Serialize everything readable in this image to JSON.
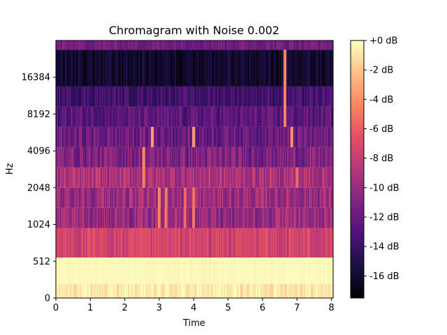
{
  "chart_data": {
    "type": "heatmap",
    "title": "Chromagram with Noise 0.002",
    "xlabel": "Time",
    "ylabel": "Hz",
    "xlim": [
      0,
      8.05
    ],
    "x_ticks": [
      {
        "value": 0,
        "label": "0"
      },
      {
        "value": 1,
        "label": "1"
      },
      {
        "value": 2,
        "label": "2"
      },
      {
        "value": 3,
        "label": "3"
      },
      {
        "value": 4,
        "label": "4"
      },
      {
        "value": 5,
        "label": "5"
      },
      {
        "value": 6,
        "label": "6"
      },
      {
        "value": 7,
        "label": "7"
      },
      {
        "value": 8,
        "label": "8"
      }
    ],
    "y_ticks": [
      {
        "label": "0",
        "octave": 0
      },
      {
        "label": "512",
        "octave": 1
      },
      {
        "label": "1024",
        "octave": 2
      },
      {
        "label": "2048",
        "octave": 3
      },
      {
        "label": "4096",
        "octave": 4
      },
      {
        "label": "8192",
        "octave": 5
      },
      {
        "label": "16384",
        "octave": 6
      }
    ],
    "colorbar": {
      "colormap": "magma",
      "range_db": [
        -17.5,
        0
      ],
      "ticks": [
        {
          "value": 0,
          "label": "+0 dB"
        },
        {
          "value": -2,
          "label": "-2 dB"
        },
        {
          "value": -4,
          "label": "-4 dB"
        },
        {
          "value": -6,
          "label": "-6 dB"
        },
        {
          "value": -8,
          "label": "-8 dB"
        },
        {
          "value": -10,
          "label": "-10 dB"
        },
        {
          "value": -12,
          "label": "-12 dB"
        },
        {
          "value": -14,
          "label": "-14 dB"
        },
        {
          "value": -16,
          "label": "-16 dB"
        }
      ]
    },
    "bands": [
      {
        "low_octave": 0.0,
        "high_octave": 0.38,
        "mean_db": -0.7,
        "variation_db": 1.0
      },
      {
        "low_octave": 0.38,
        "high_octave": 1.1,
        "mean_db": -0.15,
        "variation_db": 0.2
      },
      {
        "low_octave": 1.1,
        "high_octave": 1.9,
        "mean_db": -7.5,
        "variation_db": 1.4
      },
      {
        "low_octave": 1.9,
        "high_octave": 2.45,
        "mean_db": -10.0,
        "variation_db": 1.8
      },
      {
        "low_octave": 2.45,
        "high_octave": 3.0,
        "mean_db": -9.8,
        "variation_db": 1.8
      },
      {
        "low_octave": 3.0,
        "high_octave": 3.55,
        "mean_db": -9.2,
        "variation_db": 1.8
      },
      {
        "low_octave": 3.55,
        "high_octave": 4.1,
        "mean_db": -11.0,
        "variation_db": 1.8
      },
      {
        "low_octave": 4.1,
        "high_octave": 4.65,
        "mean_db": -11.8,
        "variation_db": 1.8
      },
      {
        "low_octave": 4.65,
        "high_octave": 5.2,
        "mean_db": -12.6,
        "variation_db": 1.5
      },
      {
        "low_octave": 5.2,
        "high_octave": 5.75,
        "mean_db": -13.6,
        "variation_db": 1.3
      },
      {
        "low_octave": 5.75,
        "high_octave": 6.75,
        "mean_db": -16.0,
        "variation_db": 1.2
      },
      {
        "low_octave": 6.75,
        "high_octave": 7.0,
        "mean_db": -11.5,
        "variation_db": 1.2
      }
    ],
    "highlights": [
      {
        "time": 2.55,
        "low_octave": 3.0,
        "high_octave": 4.1,
        "db": -4.5
      },
      {
        "time": 2.8,
        "low_octave": 4.1,
        "high_octave": 4.65,
        "db": -3.5
      },
      {
        "time": 3.0,
        "low_octave": 1.9,
        "high_octave": 3.0,
        "db": -4.5
      },
      {
        "time": 3.2,
        "low_octave": 1.9,
        "high_octave": 3.0,
        "db": -5.0
      },
      {
        "time": 3.75,
        "low_octave": 1.9,
        "high_octave": 3.0,
        "db": -5.5
      },
      {
        "time": 4.0,
        "low_octave": 1.9,
        "high_octave": 3.0,
        "db": -5.0
      },
      {
        "time": 4.0,
        "low_octave": 4.1,
        "high_octave": 4.65,
        "db": -3.5
      },
      {
        "time": 6.65,
        "low_octave": 4.65,
        "high_octave": 6.75,
        "db": -4.5
      },
      {
        "time": 6.85,
        "low_octave": 4.1,
        "high_octave": 4.65,
        "db": -4.0
      },
      {
        "time": 7.0,
        "low_octave": 3.0,
        "high_octave": 3.55,
        "db": -5.5
      }
    ]
  }
}
